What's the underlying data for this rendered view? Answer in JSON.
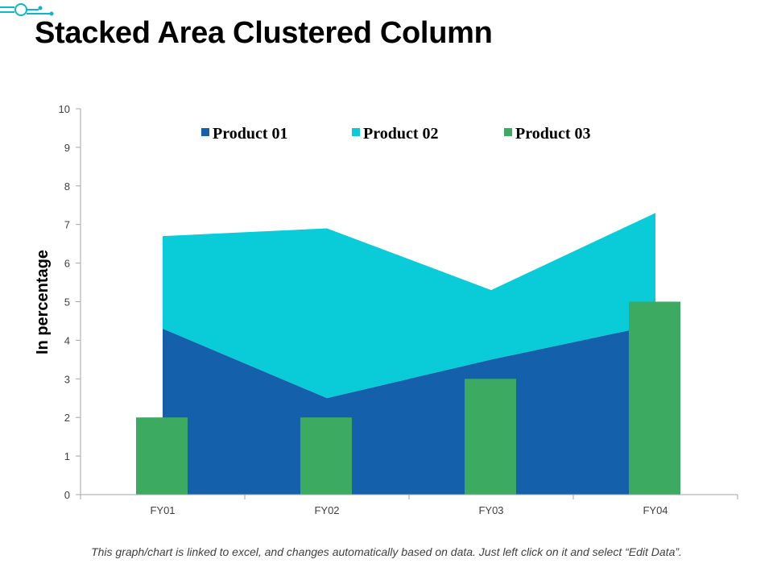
{
  "page": {
    "title": "Stacked Area Clustered Column",
    "footnote": "This graph/chart is linked to excel, and changes automatically based on data. Just left click on it and select “Edit Data”."
  },
  "colors": {
    "product01": "#1560AB",
    "product02": "#0ACCD8",
    "product03": "#3DAA62",
    "axis": "#A6A6A6",
    "accent": "#0AB8C8"
  },
  "chart_data": {
    "type": "area",
    "ylabel": "In percentage",
    "xlabel": "",
    "ylim": [
      0,
      10
    ],
    "yticks": [
      "0",
      "1",
      "2",
      "3",
      "4",
      "5",
      "6",
      "7",
      "8",
      "9",
      "10"
    ],
    "categories": [
      "FY01",
      "FY02",
      "FY03",
      "FY04"
    ],
    "series": [
      {
        "name": "Product 01",
        "type": "stacked-area",
        "values": [
          4.3,
          2.5,
          3.5,
          4.4
        ]
      },
      {
        "name": "Product 02",
        "type": "stacked-area",
        "values": [
          2.4,
          4.4,
          1.8,
          2.9
        ]
      },
      {
        "name": "Product 03",
        "type": "column",
        "values": [
          2,
          2,
          3,
          5
        ]
      }
    ],
    "legend": [
      "Product 01",
      "Product 02",
      "Product 03"
    ],
    "legend_position": "top"
  }
}
